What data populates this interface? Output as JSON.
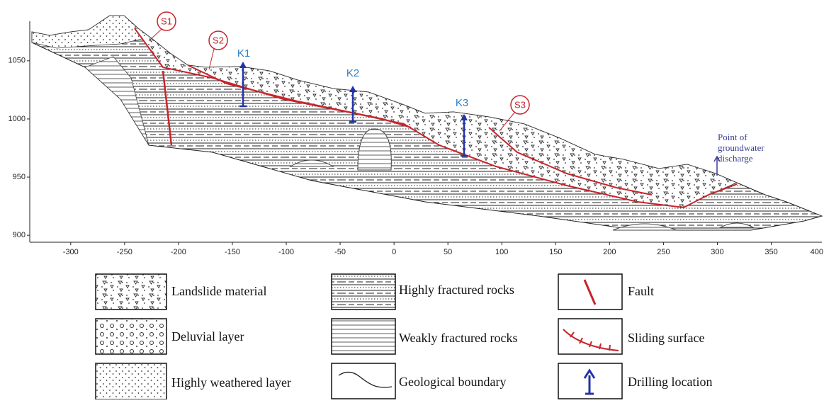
{
  "section": {
    "xlim": [
      -338,
      397
    ],
    "ylim": [
      894,
      1084
    ],
    "xticks": [
      -300,
      -250,
      -200,
      -150,
      -100,
      -50,
      0,
      50,
      100,
      150,
      200,
      250,
      300,
      350,
      400
    ],
    "yticks": [
      900,
      950,
      1000,
      1050
    ],
    "sliding_surfaces": [
      "S1",
      "S2",
      "S3"
    ],
    "drillings": [
      "K1",
      "K2",
      "K3"
    ],
    "discharge_label": "Point of groundwater discharge"
  },
  "legend": [
    {
      "label": "Landslide material"
    },
    {
      "label": "Deluvial layer"
    },
    {
      "label": "Highly weathered layer"
    },
    {
      "label": "Highly fractured rocks"
    },
    {
      "label": "Weakly fractured rocks"
    },
    {
      "label": "Geological boundary"
    },
    {
      "label": "Fault"
    },
    {
      "label": "Sliding surface"
    },
    {
      "label": "Drilling location"
    }
  ]
}
